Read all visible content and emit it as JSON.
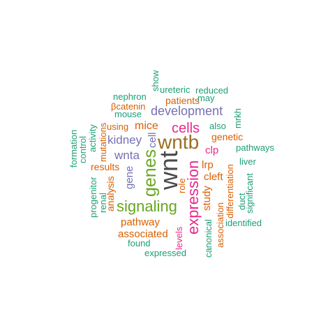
{
  "palette": {
    "dark_gray": "#4a4a4a",
    "brown": "#9a6e22",
    "teal": "#1b9e77",
    "orange": "#d95f02",
    "purple": "#7570b3",
    "magenta": "#e7298a",
    "green": "#66a61e"
  },
  "words": [
    {
      "text": "wnt",
      "color": "dark_gray"
    },
    {
      "text": "wntb",
      "color": "brown"
    },
    {
      "text": "genes",
      "color": "green"
    },
    {
      "text": "signaling",
      "color": "green"
    },
    {
      "text": "expression",
      "color": "magenta"
    },
    {
      "text": "cells",
      "color": "magenta"
    },
    {
      "text": "development",
      "color": "purple"
    },
    {
      "text": "kidney",
      "color": "purple"
    },
    {
      "text": "wnta",
      "color": "purple"
    },
    {
      "text": "gene",
      "color": "purple"
    },
    {
      "text": "cell",
      "color": "purple"
    },
    {
      "text": "mice",
      "color": "orange"
    },
    {
      "text": "pathway",
      "color": "orange"
    },
    {
      "text": "associated",
      "color": "orange"
    },
    {
      "text": "study",
      "color": "orange"
    },
    {
      "text": "cleft",
      "color": "orange"
    },
    {
      "text": "lrp",
      "color": "orange"
    },
    {
      "text": "clp",
      "color": "magenta"
    },
    {
      "text": "results",
      "color": "orange"
    },
    {
      "text": "analysis",
      "color": "orange"
    },
    {
      "text": "genetic",
      "color": "orange"
    },
    {
      "text": "patients",
      "color": "orange"
    },
    {
      "text": "βcatenin",
      "color": "orange"
    },
    {
      "text": "using",
      "color": "orange"
    },
    {
      "text": "mutations",
      "color": "orange"
    },
    {
      "text": "association",
      "color": "orange"
    },
    {
      "text": "differentiation",
      "color": "orange"
    },
    {
      "text": "levels",
      "color": "magenta"
    },
    {
      "text": "role",
      "color": "orange"
    },
    {
      "text": "renal",
      "color": "teal"
    },
    {
      "text": "progenitor",
      "color": "teal"
    },
    {
      "text": "formation",
      "color": "teal"
    },
    {
      "text": "control",
      "color": "teal"
    },
    {
      "text": "activity",
      "color": "teal"
    },
    {
      "text": "mouse",
      "color": "teal"
    },
    {
      "text": "nephron",
      "color": "teal"
    },
    {
      "text": "show",
      "color": "teal"
    },
    {
      "text": "ureteric",
      "color": "teal"
    },
    {
      "text": "reduced",
      "color": "teal"
    },
    {
      "text": "may",
      "color": "teal"
    },
    {
      "text": "mrkh",
      "color": "teal"
    },
    {
      "text": "also",
      "color": "teal"
    },
    {
      "text": "pathways",
      "color": "teal"
    },
    {
      "text": "liver",
      "color": "teal"
    },
    {
      "text": "duct",
      "color": "teal"
    },
    {
      "text": "significant",
      "color": "teal"
    },
    {
      "text": "identified",
      "color": "teal"
    },
    {
      "text": "canonical",
      "color": "teal"
    },
    {
      "text": "found",
      "color": "teal"
    },
    {
      "text": "expressed",
      "color": "teal"
    }
  ]
}
